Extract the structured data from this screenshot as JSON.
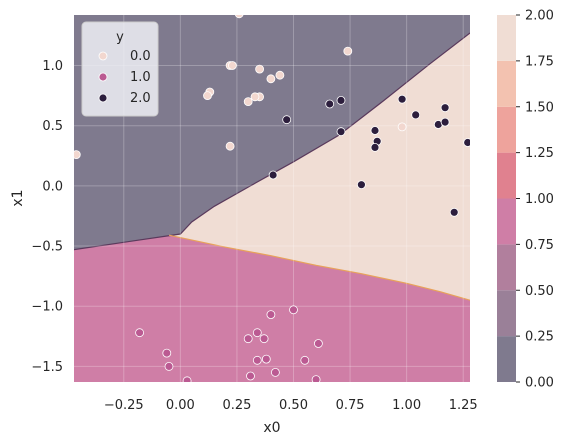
{
  "chart_data": {
    "type": "scatter",
    "subtype": "decision-boundary",
    "xlabel": "x0",
    "ylabel": "x1",
    "xlim": [
      -0.47,
      1.28
    ],
    "ylim": [
      -1.63,
      1.42
    ],
    "x_ticks": [
      -0.25,
      0.0,
      0.25,
      0.5,
      0.75,
      1.0,
      1.25
    ],
    "x_tick_labels": [
      "−0.25",
      "0.00",
      "0.25",
      "0.50",
      "0.75",
      "1.00",
      "1.25"
    ],
    "y_ticks": [
      -1.5,
      -1.0,
      -0.5,
      0.0,
      0.5,
      1.0
    ],
    "y_tick_labels": [
      "−1.5",
      "−1.0",
      "−0.5",
      "0.0",
      "0.5",
      "1.0"
    ],
    "grid": true,
    "legend": {
      "title": "y",
      "placement": "top-left",
      "entries": [
        "0.0",
        "1.0",
        "2.0"
      ]
    },
    "class_colors": {
      "0": "#f2d7cf",
      "1": "#bb5a92",
      "2": "#2c1e3d"
    },
    "region_colors": {
      "0": "#7f7a8e",
      "1": "#cf7ea6",
      "2": "#f0ddd4"
    },
    "boundaries": {
      "upper": [
        [
          -0.47,
          -0.53
        ],
        [
          0.0,
          -0.4
        ],
        [
          0.05,
          -0.3
        ],
        [
          0.15,
          -0.17
        ],
        [
          0.3,
          -0.01
        ],
        [
          0.5,
          0.2
        ],
        [
          0.7,
          0.42
        ],
        [
          0.9,
          0.71
        ],
        [
          1.1,
          1.01
        ],
        [
          1.28,
          1.27
        ]
      ],
      "lower": [
        [
          -0.05,
          -0.41
        ],
        [
          0.2,
          -0.51
        ],
        [
          0.4,
          -0.58
        ],
        [
          0.6,
          -0.66
        ],
        [
          0.8,
          -0.73
        ],
        [
          1.0,
          -0.81
        ],
        [
          1.15,
          -0.88
        ],
        [
          1.28,
          -0.95
        ]
      ]
    },
    "series": [
      {
        "name": "0.0",
        "points": [
          [
            0.26,
            1.43
          ],
          [
            -0.46,
            0.26
          ],
          [
            0.22,
            1.0
          ],
          [
            0.23,
            1.0
          ],
          [
            0.35,
            0.97
          ],
          [
            0.74,
            1.12
          ],
          [
            0.44,
            0.92
          ],
          [
            0.4,
            0.89
          ],
          [
            0.13,
            0.78
          ],
          [
            0.12,
            0.75
          ],
          [
            0.3,
            0.7
          ],
          [
            0.35,
            0.74
          ],
          [
            0.33,
            0.74
          ],
          [
            0.22,
            0.33
          ],
          [
            0.98,
            0.49
          ]
        ]
      },
      {
        "name": "1.0",
        "points": [
          [
            -0.18,
            -1.22
          ],
          [
            -0.06,
            -1.39
          ],
          [
            -0.05,
            -1.5
          ],
          [
            0.03,
            -1.62
          ],
          [
            0.34,
            -1.22
          ],
          [
            0.3,
            -1.27
          ],
          [
            0.37,
            -1.27
          ],
          [
            0.4,
            -1.07
          ],
          [
            0.34,
            -1.45
          ],
          [
            0.38,
            -1.44
          ],
          [
            0.31,
            -1.58
          ],
          [
            0.42,
            -1.55
          ],
          [
            0.5,
            -1.03
          ],
          [
            0.55,
            -1.45
          ],
          [
            0.61,
            -1.31
          ],
          [
            0.6,
            -1.61
          ]
        ]
      },
      {
        "name": "2.0",
        "points": [
          [
            0.41,
            0.09
          ],
          [
            0.47,
            0.55
          ],
          [
            0.66,
            0.68
          ],
          [
            0.71,
            0.71
          ],
          [
            0.71,
            0.45
          ],
          [
            0.8,
            0.01
          ],
          [
            0.86,
            0.46
          ],
          [
            0.87,
            0.37
          ],
          [
            0.86,
            0.32
          ],
          [
            0.98,
            0.72
          ],
          [
            1.04,
            0.59
          ],
          [
            1.14,
            0.51
          ],
          [
            1.17,
            0.65
          ],
          [
            1.17,
            0.53
          ],
          [
            1.21,
            -0.22
          ],
          [
            1.27,
            0.36
          ]
        ]
      }
    ],
    "colorbar": {
      "min": 0.0,
      "max": 2.0,
      "ticks": [
        0.0,
        0.25,
        0.5,
        0.75,
        1.0,
        1.25,
        1.5,
        1.75,
        2.0
      ],
      "tick_labels": [
        "0.00",
        "0.25",
        "0.50",
        "0.75",
        "1.00",
        "1.25",
        "1.50",
        "1.75",
        "2.00"
      ],
      "band_colors": [
        "#7f7a8e",
        "#9a8098",
        "#b17f9d",
        "#cf7ea6",
        "#e0818f",
        "#eea39c",
        "#f3c2b0",
        "#f0ddd4"
      ]
    }
  }
}
